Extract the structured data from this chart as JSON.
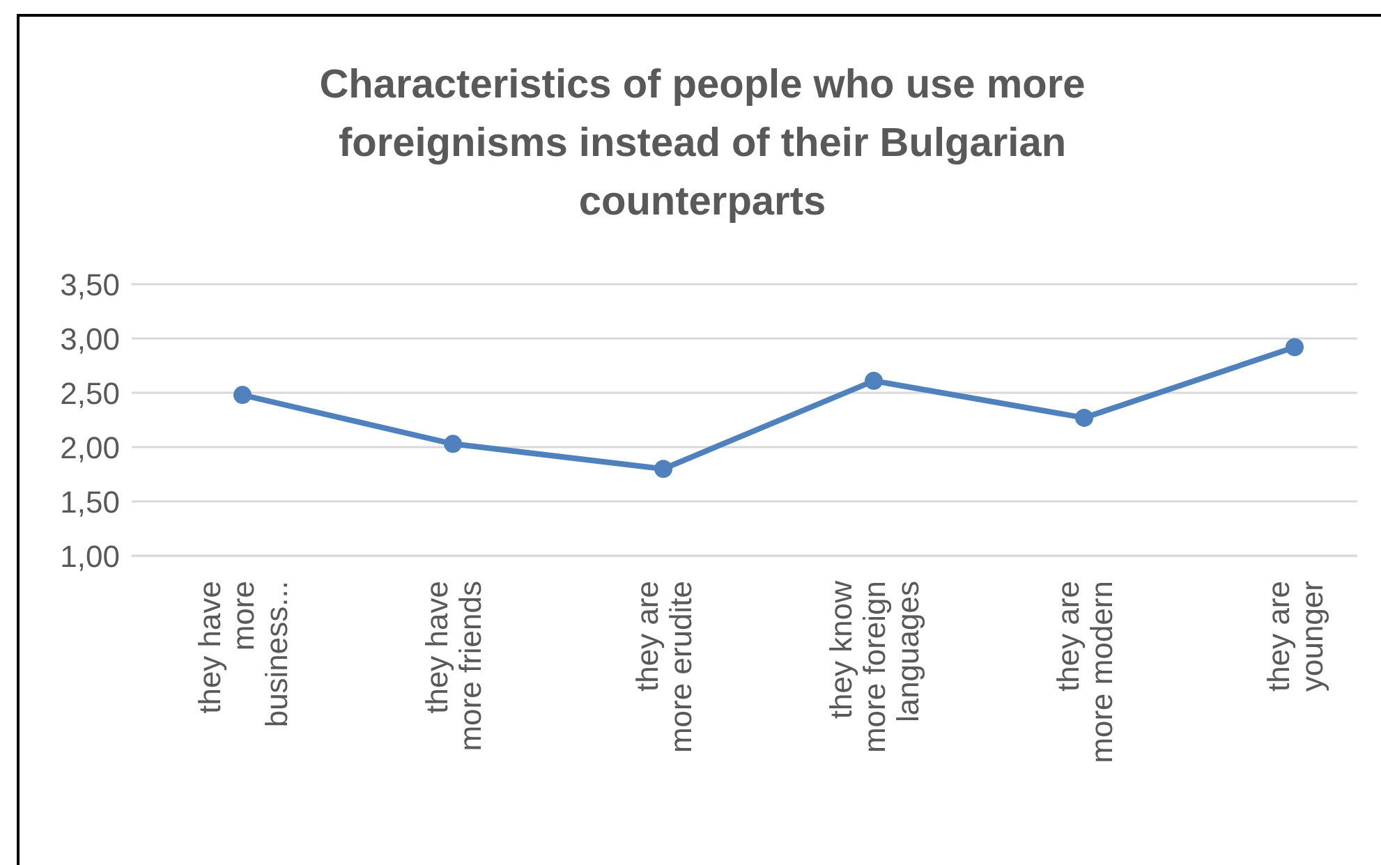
{
  "chart_data": {
    "type": "line",
    "title": "Characteristics of people who use more foreignisms instead of their Bulgarian counterparts",
    "categories": [
      "they have more business...",
      "they have more friends",
      "they are more erudite",
      "they know more foreign languages",
      "they are more modern",
      "they are younger"
    ],
    "series": [
      {
        "color": "#4f81bd",
        "values": [
          2.48,
          2.03,
          1.8,
          2.61,
          2.27,
          2.92
        ]
      }
    ],
    "ylim": [
      1,
      3.5
    ],
    "yticks": [
      {
        "value": 1,
        "label": "1,00"
      },
      {
        "value": 1.5,
        "label": "1,50"
      },
      {
        "value": 2,
        "label": "2,00"
      },
      {
        "value": 2.5,
        "label": "2,50"
      },
      {
        "value": 3,
        "label": "3,00"
      },
      {
        "value": 3.5,
        "label": "3,50"
      }
    ],
    "grid": "y",
    "legend": false,
    "marker": "circle",
    "line_style": "solid"
  }
}
